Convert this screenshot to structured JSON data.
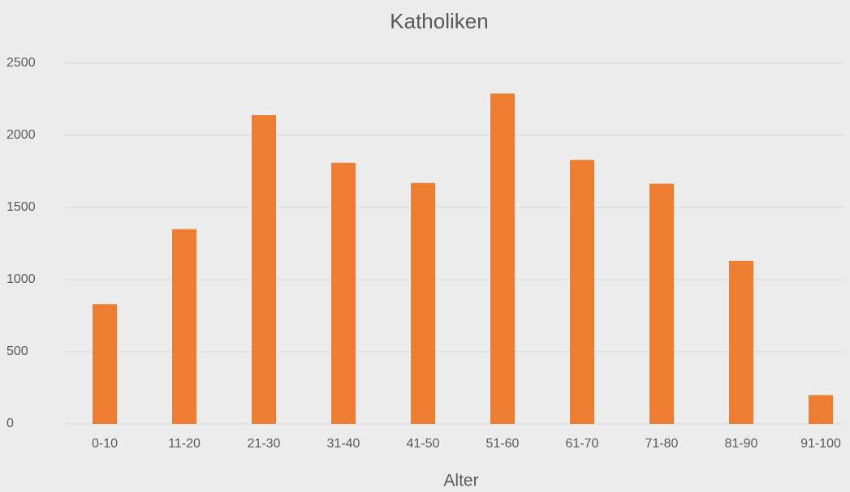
{
  "chart_data": {
    "type": "bar",
    "title": "Katholiken",
    "x_label": "Alter",
    "categories": [
      "0-10",
      "11-20",
      "21-30",
      "31-40",
      "41-50",
      "51-60",
      "61-70",
      "71-80",
      "81-90",
      "91-100"
    ],
    "values": [
      830,
      1350,
      2140,
      1810,
      1670,
      2290,
      1830,
      1665,
      1130,
      200
    ],
    "color": "#ed7d31",
    "ylim": [
      0,
      2500
    ],
    "yticks": [
      0,
      500,
      1000,
      1500,
      2000,
      2500
    ],
    "grid": true
  }
}
